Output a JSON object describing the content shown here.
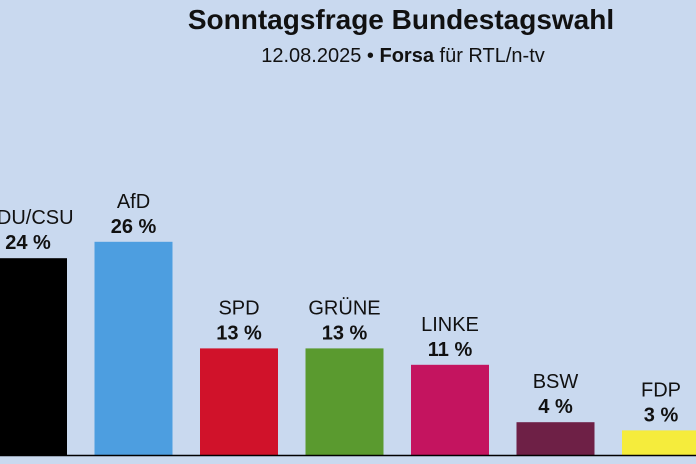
{
  "header": {
    "title": "Sonntagsfrage Bundestagswahl",
    "date": "12.08.2025",
    "separator": "•",
    "source_bold": "Forsa",
    "source_rest": "für RTL/n-tv"
  },
  "chart_data": {
    "type": "bar",
    "title": "Sonntagsfrage Bundestagswahl",
    "subtitle": "12.08.2025 • Forsa für RTL/n-tv",
    "categories": [
      "CDU/CSU",
      "AfD",
      "SPD",
      "GRÜNE",
      "LINKE",
      "BSW",
      "FDP"
    ],
    "values": [
      24,
      26,
      13,
      13,
      11,
      4,
      3
    ],
    "value_labels": [
      "24 %",
      "26 %",
      "13 %",
      "13 %",
      "11 %",
      "4 %",
      "3 %"
    ],
    "colors": [
      "#000000",
      "#4d9ee0",
      "#d0122a",
      "#5a9a2f",
      "#c4145f",
      "#6e2046",
      "#f5ec3c"
    ],
    "xlabel": "",
    "ylabel": "",
    "grid": false,
    "legend": "none"
  }
}
